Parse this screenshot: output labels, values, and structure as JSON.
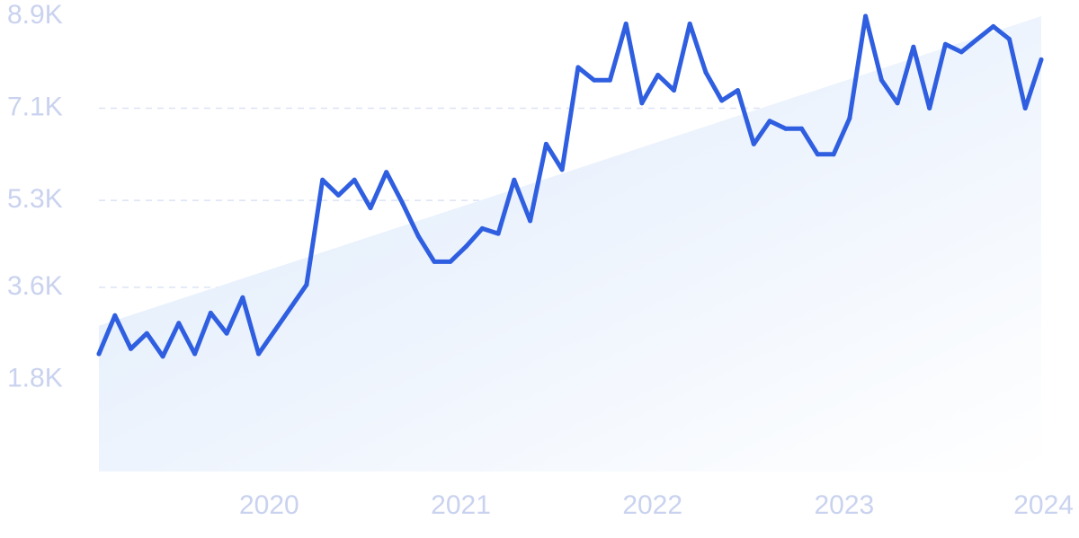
{
  "chart_data": {
    "type": "line",
    "title": "",
    "xlabel": "",
    "ylabel": "",
    "x_ticks": [
      "2020",
      "2021",
      "2022",
      "2023",
      "2024"
    ],
    "y_ticks": [
      "1.8K",
      "3.6K",
      "5.3K",
      "7.1K",
      "8.9K"
    ],
    "y_tick_values": [
      1800,
      3600,
      5300,
      7100,
      8900
    ],
    "ylim": [
      0,
      8900
    ],
    "xlim": [
      "2019-02",
      "2024-01"
    ],
    "grid": "horizontal-dashed",
    "colors": {
      "line": "#2f5fe0",
      "fill": "#dce9fb",
      "ticks": "#c9d2ef",
      "grid": "#dde3f5"
    },
    "trend_fill": {
      "start": 2850,
      "end": 8900
    },
    "x": [
      "2019-02",
      "2019-03",
      "2019-04",
      "2019-05",
      "2019-06",
      "2019-07",
      "2019-08",
      "2019-09",
      "2019-10",
      "2019-11",
      "2019-12",
      "2020-01",
      "2020-02",
      "2020-03",
      "2020-04",
      "2020-05",
      "2020-06",
      "2020-07",
      "2020-08",
      "2020-09",
      "2020-10",
      "2020-11",
      "2020-12",
      "2021-01",
      "2021-02",
      "2021-03",
      "2021-04",
      "2021-05",
      "2021-06",
      "2021-07",
      "2021-08",
      "2021-09",
      "2021-10",
      "2021-11",
      "2021-12",
      "2022-01",
      "2022-02",
      "2022-03",
      "2022-04",
      "2022-05",
      "2022-06",
      "2022-07",
      "2022-08",
      "2022-09",
      "2022-10",
      "2022-11",
      "2022-12",
      "2023-01",
      "2023-02",
      "2023-03",
      "2023-04",
      "2023-05",
      "2023-06",
      "2023-07",
      "2023-08",
      "2023-09",
      "2023-10",
      "2023-11",
      "2023-12",
      "2024-01"
    ],
    "values": [
      2300,
      3050,
      2400,
      2700,
      2250,
      2900,
      2300,
      3100,
      2700,
      3400,
      2300,
      2750,
      3200,
      3650,
      5700,
      5400,
      5700,
      5150,
      5850,
      5250,
      4600,
      4100,
      4100,
      4400,
      4750,
      4650,
      5700,
      4900,
      6400,
      5900,
      7900,
      7650,
      7650,
      8750,
      7200,
      7750,
      7450,
      8750,
      7800,
      7250,
      7450,
      6400,
      6850,
      6700,
      6700,
      6200,
      6200,
      6900,
      8900,
      7650,
      7200,
      8300,
      7100,
      8350,
      8200,
      8450,
      8700,
      8450,
      7100,
      8050
    ]
  }
}
